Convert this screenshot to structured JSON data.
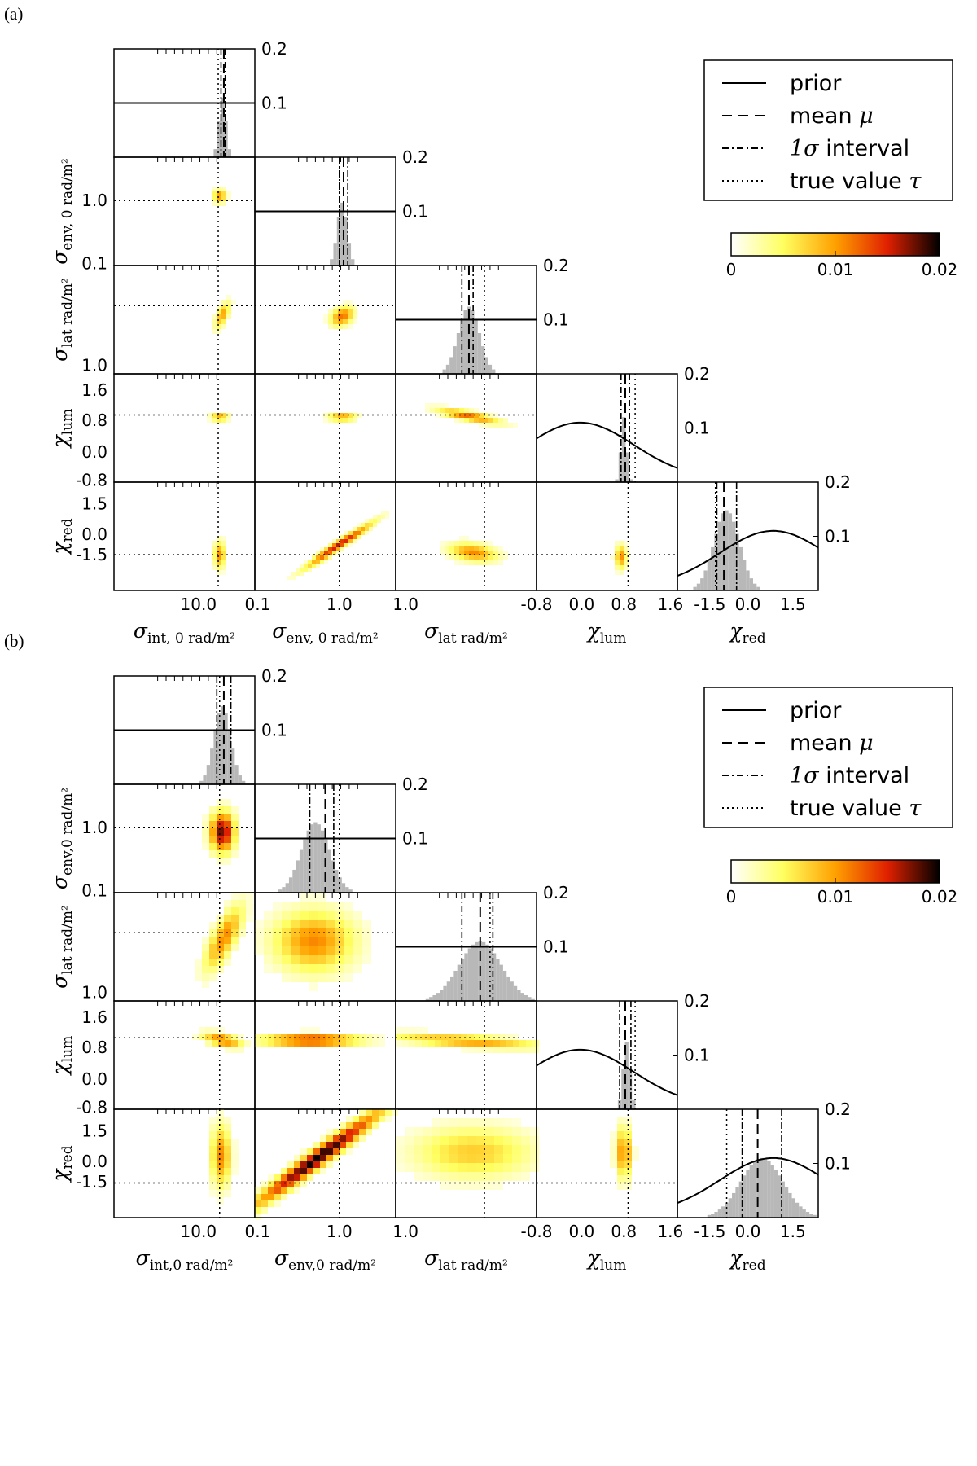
{
  "figure": {
    "panels": [
      {
        "letter": "(a)",
        "variant": "a",
        "legend": {
          "entries": [
            {
              "label": "prior",
              "symbol": "",
              "style": "solid"
            },
            {
              "label": "mean ",
              "symbol": "μ",
              "style": "dashed"
            },
            {
              "label": " interval",
              "symbol": "1σ",
              "style": "dashdot",
              "symbol_first": true
            },
            {
              "label": "true value ",
              "symbol": "τ",
              "style": "dotted"
            }
          ]
        },
        "colorbar": {
          "ticks": [
            "0",
            "0.01",
            "0.02"
          ],
          "range": [
            0,
            0.02
          ],
          "colormap": "afmhot_r"
        },
        "params": [
          {
            "symbol": "σ",
            "sub": "int, 0 rad/m²",
            "ticks_x": [
              "10.0"
            ],
            "ticks_y": []
          },
          {
            "symbol": "σ",
            "sub": "env, 0 rad/m²",
            "ticks_x": [
              "0.1",
              "1.0"
            ],
            "ticks_y": [
              "0.1",
              "1.0"
            ]
          },
          {
            "symbol": "σ",
            "sub": "lat rad/m²",
            "ticks_x": [
              "1.0"
            ],
            "ticks_y": [
              "1.0"
            ]
          },
          {
            "symbol": "χ",
            "sub": "lum",
            "ticks_x": [
              "-0.8",
              "0.0",
              "0.8",
              "1.6"
            ],
            "ticks_y": [
              "-0.8",
              "0.0",
              "0.8",
              "1.6"
            ]
          },
          {
            "symbol": "χ",
            "sub": "red",
            "ticks_x": [
              "-1.5",
              "0.0",
              "1.5"
            ],
            "ticks_y": [
              "-1.5",
              "0.0",
              "1.5"
            ]
          }
        ],
        "hist_yticks": [
          "0.1",
          "0.2"
        ]
      },
      {
        "letter": "(b)",
        "variant": "b",
        "legend": {
          "entries": [
            {
              "label": "prior",
              "symbol": "",
              "style": "solid"
            },
            {
              "label": "mean ",
              "symbol": "μ",
              "style": "dashed"
            },
            {
              "label": " interval",
              "symbol": "1σ",
              "style": "dashdot",
              "symbol_first": true
            },
            {
              "label": "true value ",
              "symbol": "τ",
              "style": "dotted"
            }
          ]
        },
        "colorbar": {
          "ticks": [
            "0",
            "0.01",
            "0.02"
          ],
          "range": [
            0,
            0.02
          ],
          "colormap": "afmhot_r"
        },
        "params": [
          {
            "symbol": "σ",
            "sub": "int,0 rad/m²",
            "ticks_x": [
              "10.0"
            ],
            "ticks_y": []
          },
          {
            "symbol": "σ",
            "sub": "env,0 rad/m²",
            "ticks_x": [
              "0.1",
              "1.0"
            ],
            "ticks_y": [
              "0.1",
              "1.0"
            ]
          },
          {
            "symbol": "σ",
            "sub": "lat rad/m²",
            "ticks_x": [
              "1.0"
            ],
            "ticks_y": [
              "1.0"
            ]
          },
          {
            "symbol": "χ",
            "sub": "lum",
            "ticks_x": [
              "-0.8",
              "0.0",
              "0.8",
              "1.6"
            ],
            "ticks_y": [
              "-0.8",
              "0.0",
              "0.8",
              "1.6"
            ]
          },
          {
            "symbol": "χ",
            "sub": "red",
            "ticks_x": [
              "-1.5",
              "0.0",
              "1.5"
            ],
            "ticks_y": [
              "-1.5",
              "0.0",
              "1.5"
            ]
          }
        ],
        "hist_yticks": [
          "0.1",
          "0.2"
        ]
      }
    ]
  },
  "chart_data": [
    {
      "type": "corner-plot",
      "panel": "(a)",
      "parameters": [
        "σ_int,0",
        "σ_env,0",
        "σ_lat",
        "χ_lum",
        "χ_red"
      ],
      "true_values": {
        "χ_lum": 1.0,
        "χ_red": -1.0
      },
      "marginal_ylim": [
        0,
        0.2
      ],
      "marginals": {
        "χ_lum": {
          "mean": 0.9,
          "interval_1sigma": [
            0.85,
            0.95
          ],
          "prior": "gaussian(0, 0.8)"
        },
        "χ_red": {
          "mean": -0.9,
          "interval_1sigma": [
            -1.25,
            -0.65
          ],
          "prior": "gaussian(0, 0.8)"
        }
      },
      "colorbar_range": [
        0,
        0.02
      ]
    },
    {
      "type": "corner-plot",
      "panel": "(b)",
      "parameters": [
        "σ_int,0",
        "σ_env,0",
        "σ_lat",
        "χ_lum",
        "χ_red"
      ],
      "true_values": {
        "χ_lum": 1.0,
        "χ_red": -1.0
      },
      "marginal_ylim": [
        0,
        0.2
      ],
      "marginals": {
        "χ_lum": {
          "mean": 0.95,
          "interval_1sigma": [
            0.9,
            1.0
          ],
          "prior": "gaussian(0, 0.8)"
        },
        "χ_red": {
          "mean": 0.2,
          "interval_1sigma": [
            -0.4,
            1.1
          ],
          "prior": "gaussian(0, 0.8)"
        }
      },
      "colorbar_range": [
        0,
        0.02
      ]
    }
  ]
}
